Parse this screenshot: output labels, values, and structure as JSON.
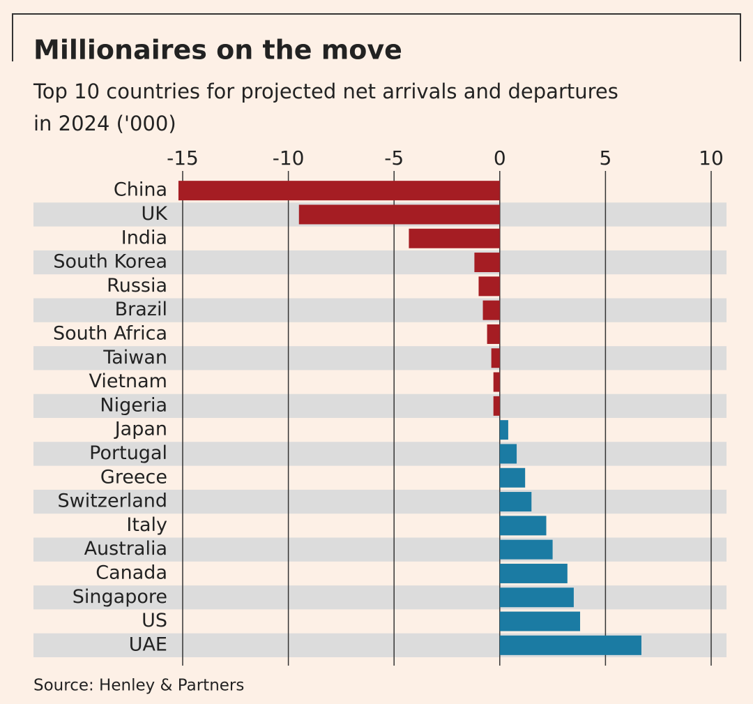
{
  "chart_data": {
    "type": "bar",
    "orientation": "horizontal",
    "title": "Millionaires on the move",
    "subtitle": [
      "Top 10 countries for projected net arrivals and departures",
      "in 2024 ('000)"
    ],
    "source": "Source: Henley & Partners",
    "categories": [
      "China",
      "UK",
      "India",
      "South Korea",
      "Russia",
      "Brazil",
      "South Africa",
      "Taiwan",
      "Vietnam",
      "Nigeria",
      "Japan",
      "Portugal",
      "Greece",
      "Switzerland",
      "Italy",
      "Australia",
      "Canada",
      "Singapore",
      "US",
      "UAE"
    ],
    "values": [
      -15.2,
      -9.5,
      -4.3,
      -1.2,
      -1.0,
      -0.8,
      -0.6,
      -0.4,
      -0.3,
      -0.3,
      0.4,
      0.8,
      1.2,
      1.5,
      2.2,
      2.5,
      3.2,
      3.5,
      3.8,
      6.7
    ],
    "negative_color": "#a51d23",
    "positive_color": "#1b7ba3",
    "xlim": [
      -16.5,
      10.7
    ],
    "xticks": [
      -15,
      -10,
      -5,
      0,
      5,
      10
    ],
    "grid": true
  }
}
